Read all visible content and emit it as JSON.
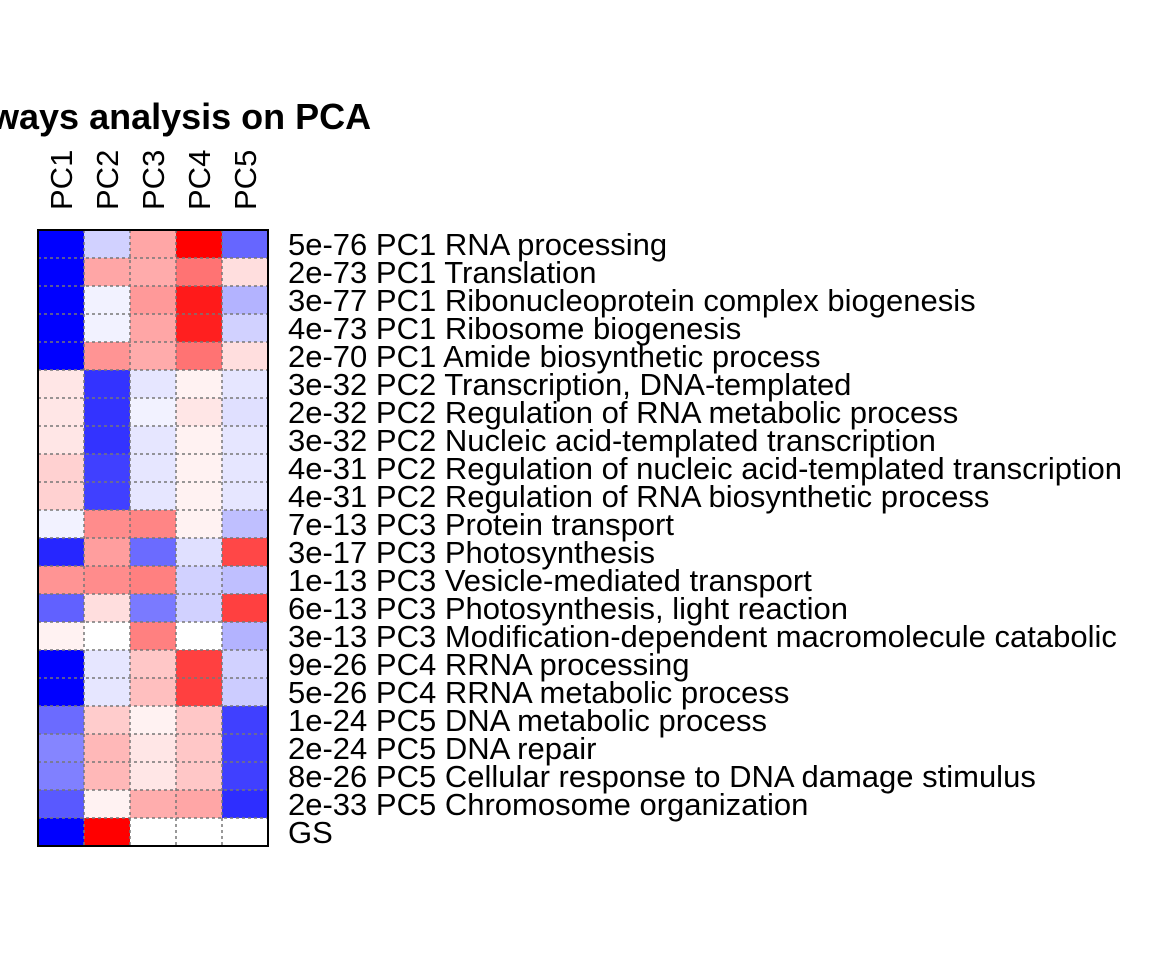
{
  "chart_data": {
    "type": "heatmap",
    "title": "ways analysis on PCA",
    "columns": [
      "PC1",
      "PC2",
      "PC3",
      "PC4",
      "PC5"
    ],
    "rows": [
      "5e-76 PC1 RNA processing",
      "2e-73 PC1 Translation",
      "3e-77 PC1 Ribonucleoprotein complex biogenesis",
      "4e-73 PC1 Ribosome biogenesis",
      "2e-70 PC1 Amide biosynthetic process",
      "3e-32 PC2 Transcription, DNA-templated",
      "2e-32 PC2 Regulation of RNA metabolic process",
      "3e-32 PC2 Nucleic acid-templated transcription",
      "4e-31 PC2 Regulation of nucleic acid-templated transcription",
      "4e-31 PC2 Regulation of RNA biosynthetic process",
      "7e-13 PC3 Protein transport",
      "3e-17 PC3 Photosynthesis",
      "1e-13 PC3 Vesicle-mediated transport",
      "6e-13 PC3 Photosynthesis, light reaction",
      "3e-13 PC3 Modification-dependent macromolecule catabolic",
      "9e-26 PC4 RRNA processing",
      "5e-26 PC4 RRNA metabolic process",
      "1e-24 PC5 DNA metabolic process",
      "2e-24 PC5 DNA repair",
      "8e-26 PC5 Cellular response to DNA damage stimulus",
      "2e-33 PC5 Chromosome organization",
      "GS"
    ],
    "values": [
      [
        -1.0,
        -0.18,
        0.35,
        1.0,
        -0.6
      ],
      [
        -1.0,
        0.35,
        0.33,
        0.55,
        0.13
      ],
      [
        -1.0,
        -0.05,
        0.4,
        0.9,
        -0.3
      ],
      [
        -1.0,
        -0.05,
        0.35,
        0.88,
        -0.18
      ],
      [
        -1.0,
        0.42,
        0.33,
        0.55,
        0.13
      ],
      [
        0.1,
        -0.8,
        -0.1,
        0.05,
        -0.1
      ],
      [
        0.1,
        -0.8,
        -0.05,
        0.1,
        -0.12
      ],
      [
        0.1,
        -0.8,
        -0.1,
        0.05,
        -0.1
      ],
      [
        0.18,
        -0.75,
        -0.1,
        0.05,
        -0.1
      ],
      [
        0.18,
        -0.75,
        -0.1,
        0.05,
        -0.1
      ],
      [
        -0.05,
        0.45,
        0.48,
        0.05,
        -0.25
      ],
      [
        -0.85,
        0.38,
        -0.58,
        -0.12,
        0.72
      ],
      [
        0.42,
        0.45,
        0.5,
        -0.18,
        -0.25
      ],
      [
        -0.62,
        0.13,
        -0.52,
        -0.18,
        0.75
      ],
      [
        0.05,
        0.0,
        0.5,
        0.0,
        -0.3
      ],
      [
        -1.0,
        -0.1,
        0.22,
        0.75,
        -0.18
      ],
      [
        -1.0,
        -0.1,
        0.25,
        0.75,
        -0.2
      ],
      [
        -0.58,
        0.2,
        0.05,
        0.22,
        -0.75
      ],
      [
        -0.48,
        0.28,
        0.1,
        0.22,
        -0.75
      ],
      [
        -0.5,
        0.28,
        0.1,
        0.22,
        -0.75
      ],
      [
        -0.65,
        0.05,
        0.32,
        0.35,
        -0.82
      ],
      [
        -1.0,
        1.0,
        0.0,
        0.0,
        0.0
      ]
    ],
    "color_scale": {
      "low": "#0000ff",
      "mid": "#ffffff",
      "high": "#ff0000"
    },
    "grid": "dotted",
    "legend": "none"
  }
}
